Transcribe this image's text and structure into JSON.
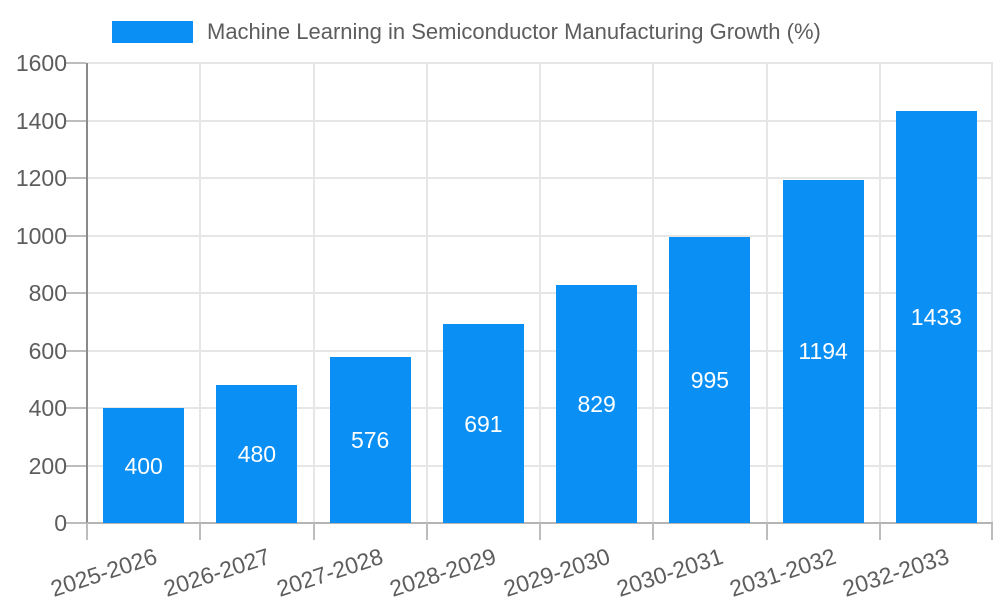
{
  "legend": {
    "label": "Machine Learning in Semiconductor Manufacturing Growth (%)"
  },
  "chart_data": {
    "type": "bar",
    "title": "Machine Learning in Semiconductor Manufacturing Growth (%)",
    "categories": [
      "2025-2026",
      "2026-2027",
      "2027-2028",
      "2028-2029",
      "2029-2030",
      "2030-2031",
      "2031-2032",
      "2032-2033"
    ],
    "values": [
      400,
      480,
      576,
      691,
      829,
      995,
      1194,
      1433
    ],
    "xlabel": "",
    "ylabel": "",
    "ylim": [
      0,
      1600
    ],
    "yticks": [
      0,
      200,
      400,
      600,
      800,
      1000,
      1200,
      1400,
      1600
    ],
    "grid": true,
    "legend_position": "top",
    "value_labels": "inside-center",
    "colors": {
      "bar": "#0a8ff5",
      "value_label": "#ffffff",
      "grid": "#e6e6e6",
      "tick": "#bdbdbd",
      "y_axis": "#8a8a8a",
      "x_axis": "#b4b4b4",
      "text": "#5d5d5d"
    }
  }
}
